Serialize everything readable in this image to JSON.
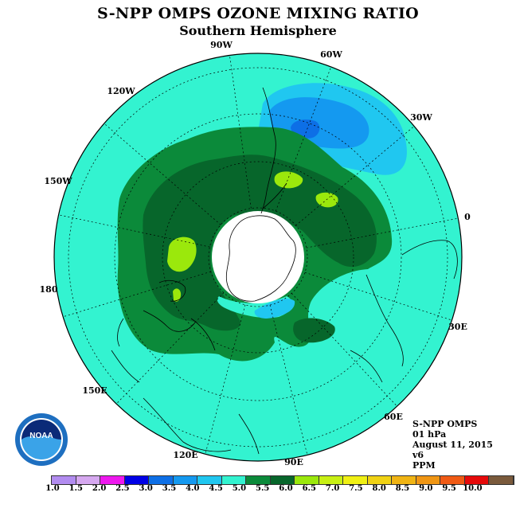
{
  "header": {
    "title": "S-NPP OMPS OZONE MIXING RATIO",
    "subtitle": "Southern Hemisphere"
  },
  "map": {
    "longitude_labels": [
      "90W",
      "60W",
      "30W",
      "0",
      "30E",
      "60E",
      "90E",
      "120E",
      "150E",
      "180",
      "150W",
      "120W"
    ],
    "colors": {
      "ocean_background": "#33f3d0",
      "band_5_0_5_5": "#0b8a3a",
      "band_5_5_6_0": "#07662b",
      "band_6_0_6_5": "#9be80c",
      "band_4_0_4_5": "#20c7f0",
      "band_3_5_4_0": "#1499f0",
      "band_3_0_3_5": "#0d6fe6",
      "no_data": "#ffffff"
    }
  },
  "info": {
    "instrument": "S-NPP OMPS",
    "level": "01 hPa",
    "date": "August 11, 2015",
    "version": "v6",
    "units": "PPM"
  },
  "colorbar": {
    "labels": [
      "1.0",
      "1.5",
      "2.0",
      "2.5",
      "3.0",
      "3.5",
      "4.0",
      "4.5",
      "5.0",
      "5.5",
      "6.0",
      "6.5",
      "7.0",
      "7.5",
      "8.0",
      "8.5",
      "9.0",
      "9.5",
      "10.0"
    ],
    "colors": [
      "#b28cf0",
      "#d6a8f0",
      "#ee18ee",
      "#0000e6",
      "#0d6fe6",
      "#1499f0",
      "#20c7f0",
      "#33f3d0",
      "#0b8a3a",
      "#07662b",
      "#9be80c",
      "#c8f014",
      "#f0f014",
      "#f0d214",
      "#f0b414",
      "#f09614",
      "#f05a14",
      "#e60a0a",
      "#7a5a3c"
    ]
  },
  "logo": {
    "text": "NOAA",
    "icon": "noaa-logo-icon"
  }
}
